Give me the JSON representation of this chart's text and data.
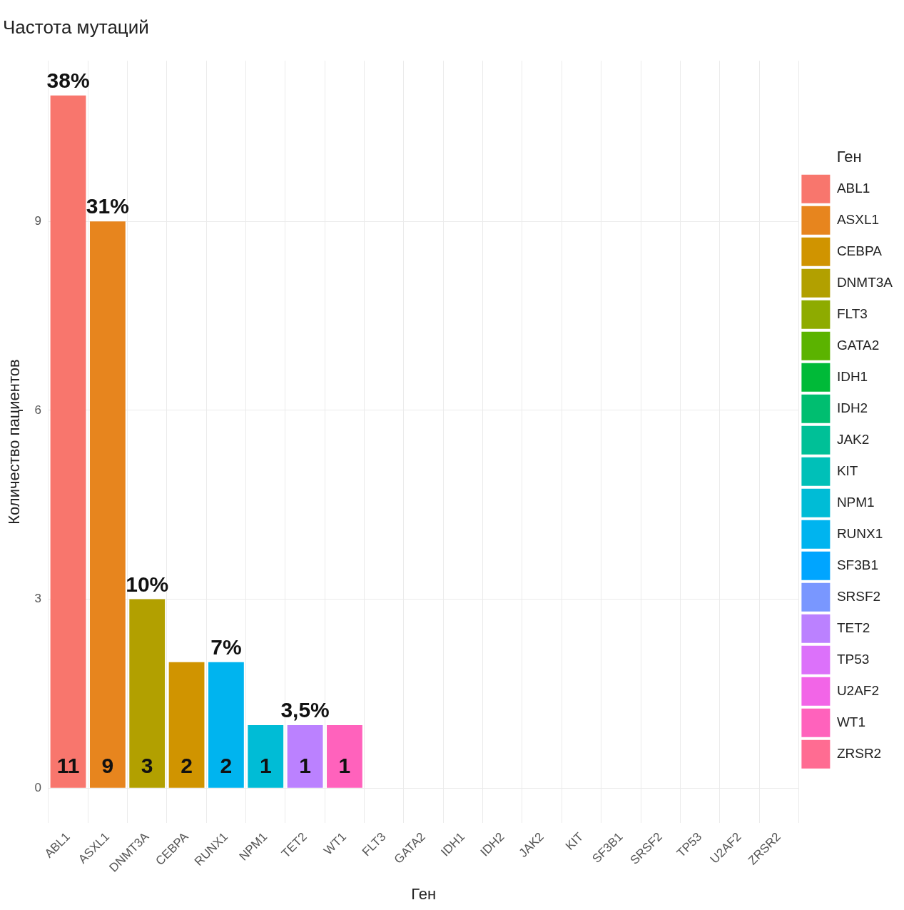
{
  "chart_data": {
    "type": "bar",
    "title": "Частота мутаций",
    "xlabel": "Ген",
    "ylabel": "Количество пациентов",
    "legend_title": "Ген",
    "categories": [
      "ABL1",
      "ASXL1",
      "DNMT3A",
      "CEBPA",
      "RUNX1",
      "NPM1",
      "TET2",
      "WT1",
      "FLT3",
      "GATA2",
      "IDH1",
      "IDH2",
      "JAK2",
      "KIT",
      "SF3B1",
      "SRSF2",
      "TP53",
      "U2AF2",
      "ZRSR2"
    ],
    "series": [
      {
        "name": "ABL1",
        "color": "#f8766d",
        "values": [
          11,
          null,
          null,
          null,
          null,
          null,
          null,
          null,
          null,
          null,
          null,
          null,
          null,
          null,
          null,
          null,
          null,
          null,
          null
        ],
        "value_labels": [
          "11",
          null,
          null,
          null,
          null,
          null,
          null,
          null,
          null,
          null,
          null,
          null,
          null,
          null,
          null,
          null,
          null,
          null,
          null
        ]
      },
      {
        "name": "ASXL1",
        "color": "#e7851e",
        "values": [
          null,
          9,
          null,
          null,
          null,
          null,
          null,
          null,
          null,
          null,
          null,
          null,
          null,
          null,
          null,
          null,
          null,
          null,
          null
        ],
        "value_labels": [
          null,
          "9",
          null,
          null,
          null,
          null,
          null,
          null,
          null,
          null,
          null,
          null,
          null,
          null,
          null,
          null,
          null,
          null,
          null
        ]
      },
      {
        "name": "CEBPA",
        "color": "#d09400",
        "values": [
          null,
          null,
          null,
          2,
          null,
          null,
          null,
          null,
          null,
          null,
          null,
          null,
          null,
          null,
          null,
          null,
          null,
          null,
          null
        ],
        "value_labels": [
          null,
          null,
          null,
          "2",
          null,
          null,
          null,
          null,
          null,
          null,
          null,
          null,
          null,
          null,
          null,
          null,
          null,
          null,
          null
        ]
      },
      {
        "name": "DNMT3A",
        "color": "#b2a000",
        "values": [
          null,
          null,
          3,
          null,
          null,
          null,
          null,
          null,
          null,
          null,
          null,
          null,
          null,
          null,
          null,
          null,
          null,
          null,
          null
        ],
        "value_labels": [
          null,
          null,
          "3",
          null,
          null,
          null,
          null,
          null,
          null,
          null,
          null,
          null,
          null,
          null,
          null,
          null,
          null,
          null,
          null
        ]
      },
      {
        "name": "FLT3",
        "color": "#8eab00",
        "values": [
          null,
          null,
          null,
          null,
          null,
          null,
          null,
          null,
          0,
          null,
          null,
          null,
          null,
          null,
          null,
          null,
          null,
          null,
          null
        ]
      },
      {
        "name": "GATA2",
        "color": "#5bb300",
        "values": [
          null,
          null,
          null,
          null,
          null,
          null,
          null,
          null,
          null,
          0,
          null,
          null,
          null,
          null,
          null,
          null,
          null,
          null,
          null
        ]
      },
      {
        "name": "IDH1",
        "color": "#00ba38",
        "values": [
          null,
          null,
          null,
          null,
          null,
          null,
          null,
          null,
          null,
          null,
          0,
          null,
          null,
          null,
          null,
          null,
          null,
          null,
          null
        ]
      },
      {
        "name": "IDH2",
        "color": "#00be70",
        "values": [
          null,
          null,
          null,
          null,
          null,
          null,
          null,
          null,
          null,
          null,
          null,
          0,
          null,
          null,
          null,
          null,
          null,
          null,
          null
        ]
      },
      {
        "name": "JAK2",
        "color": "#00c097",
        "values": [
          null,
          null,
          null,
          null,
          null,
          null,
          null,
          null,
          null,
          null,
          null,
          null,
          0,
          null,
          null,
          null,
          null,
          null,
          null
        ]
      },
      {
        "name": "KIT",
        "color": "#00c0b8",
        "values": [
          null,
          null,
          null,
          null,
          null,
          null,
          null,
          null,
          null,
          null,
          null,
          null,
          null,
          0,
          null,
          null,
          null,
          null,
          null
        ]
      },
      {
        "name": "NPM1",
        "color": "#00bcd6",
        "values": [
          null,
          null,
          null,
          null,
          null,
          1,
          null,
          null,
          null,
          null,
          null,
          null,
          null,
          null,
          null,
          null,
          null,
          null,
          null
        ],
        "value_labels": [
          null,
          null,
          null,
          null,
          null,
          "1",
          null,
          null,
          null,
          null,
          null,
          null,
          null,
          null,
          null,
          null,
          null,
          null,
          null
        ]
      },
      {
        "name": "RUNX1",
        "color": "#00b4ef",
        "values": [
          null,
          null,
          null,
          null,
          2,
          null,
          null,
          null,
          null,
          null,
          null,
          null,
          null,
          null,
          null,
          null,
          null,
          null,
          null
        ],
        "value_labels": [
          null,
          null,
          null,
          null,
          "2",
          null,
          null,
          null,
          null,
          null,
          null,
          null,
          null,
          null,
          null,
          null,
          null,
          null,
          null
        ]
      },
      {
        "name": "SF3B1",
        "color": "#00a5ff",
        "values": [
          null,
          null,
          null,
          null,
          null,
          null,
          null,
          null,
          null,
          null,
          null,
          null,
          null,
          null,
          0,
          null,
          null,
          null,
          null
        ]
      },
      {
        "name": "SRSF2",
        "color": "#7997ff",
        "values": [
          null,
          null,
          null,
          null,
          null,
          null,
          null,
          null,
          null,
          null,
          null,
          null,
          null,
          null,
          null,
          0,
          null,
          null,
          null
        ]
      },
      {
        "name": "TET2",
        "color": "#bb81ff",
        "values": [
          null,
          null,
          null,
          null,
          null,
          null,
          1,
          null,
          null,
          null,
          null,
          null,
          null,
          null,
          null,
          null,
          null,
          null,
          null
        ],
        "value_labels": [
          null,
          null,
          null,
          null,
          null,
          null,
          "1",
          null,
          null,
          null,
          null,
          null,
          null,
          null,
          null,
          null,
          null,
          null,
          null
        ]
      },
      {
        "name": "TP53",
        "color": "#dc71fa",
        "values": [
          null,
          null,
          null,
          null,
          null,
          null,
          null,
          null,
          null,
          null,
          null,
          null,
          null,
          null,
          null,
          null,
          0,
          null,
          null
        ]
      },
      {
        "name": "U2AF2",
        "color": "#f265e7",
        "values": [
          null,
          null,
          null,
          null,
          null,
          null,
          null,
          null,
          null,
          null,
          null,
          null,
          null,
          null,
          null,
          null,
          null,
          0,
          null
        ]
      },
      {
        "name": "WT1",
        "color": "#ff62bc",
        "values": [
          null,
          null,
          null,
          null,
          null,
          null,
          null,
          1,
          null,
          null,
          null,
          null,
          null,
          null,
          null,
          null,
          null,
          null,
          null
        ],
        "value_labels": [
          null,
          null,
          null,
          null,
          null,
          null,
          null,
          "1",
          null,
          null,
          null,
          null,
          null,
          null,
          null,
          null,
          null,
          null,
          null
        ]
      },
      {
        "name": "ZRSR2",
        "color": "#ff6c92",
        "values": [
          null,
          null,
          null,
          null,
          null,
          null,
          null,
          null,
          null,
          null,
          null,
          null,
          null,
          null,
          null,
          null,
          null,
          null,
          0
        ]
      }
    ],
    "annotations": [
      {
        "text": "38%",
        "x": "ABL1",
        "y": 11
      },
      {
        "text": "31%",
        "x": "ASXL1",
        "y": 9
      },
      {
        "text": "10%",
        "x": "DNMT3A",
        "y": 3
      },
      {
        "text": "7%",
        "x": "RUNX1",
        "y": 2
      },
      {
        "text": "3,5%",
        "x": "TET2",
        "y": 1
      }
    ],
    "ylim": [
      -0.55,
      11.55
    ],
    "yticks": [
      0,
      3,
      6,
      9
    ],
    "grid": true,
    "legend": "right"
  }
}
